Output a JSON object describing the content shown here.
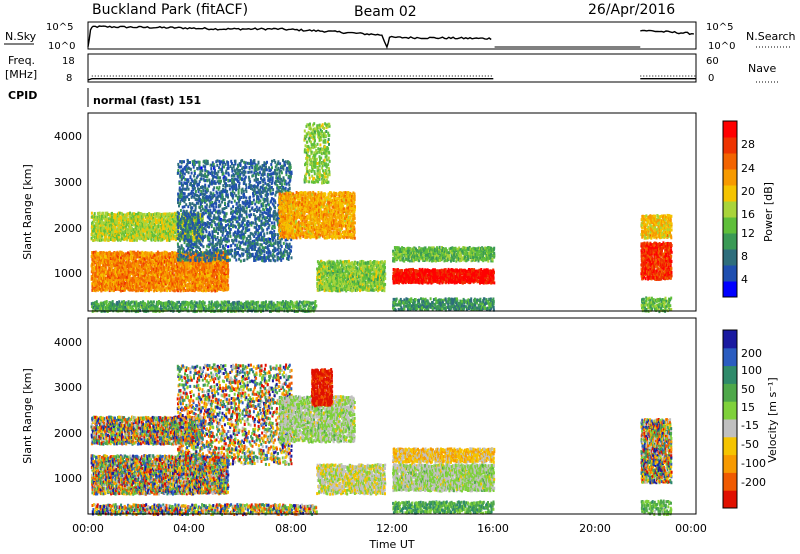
{
  "header": {
    "title": "Buckland Park (fitACF)",
    "beam": "Beam 02",
    "date": "26/Apr/2016"
  },
  "strip": {
    "nsky_label": "N.Sky",
    "nsky_ticks": [
      "10^5",
      "10^0"
    ],
    "nsearch_label": "N.Search",
    "freq_label_1": "Freq.",
    "freq_label_2": "[MHz]",
    "freq_ticks": [
      "18",
      "8"
    ],
    "nave_label": "Nave",
    "nave_ticks": [
      "60",
      "0"
    ],
    "cpid_label": "CPID",
    "cpid_value": "normal (fast) 151"
  },
  "axes": {
    "xlabel": "Time UT",
    "x_ticks": [
      "00:00",
      "04:00",
      "08:00",
      "12:00",
      "16:00",
      "20:00",
      "00:00"
    ],
    "ylabel": "Slant Range [km]",
    "y_ticks": [
      "4000",
      "3000",
      "2000",
      "1000"
    ]
  },
  "colorbars": {
    "power": {
      "label": "Power [dB]",
      "ticks": [
        "28",
        "24",
        "20",
        "16",
        "12",
        "8",
        "4"
      ],
      "colors": [
        "#0000ff",
        "#1f4fb0",
        "#2e6e7c",
        "#3a9a55",
        "#5fbf3a",
        "#a9d43a",
        "#f5c400",
        "#f79a00",
        "#f36400",
        "#ee3300",
        "#ff0000"
      ]
    },
    "velocity": {
      "label": "Velocity [m s⁻¹]",
      "ticks": [
        "200",
        "100",
        "50",
        "15",
        "-15",
        "-50",
        "-100",
        "-200"
      ],
      "colors": [
        "#1a1aa0",
        "#2a5cc0",
        "#2f8a6a",
        "#4ea84a",
        "#7fd13a",
        "#c0c0c0",
        "#f5c400",
        "#f79a00",
        "#f05a00",
        "#e01000"
      ]
    }
  },
  "chart_data": [
    {
      "type": "line",
      "panel": "N.Sky / N.Search",
      "x_hours": [
        0,
        0.1,
        0.2,
        3.5,
        5.2,
        7.5,
        9.5,
        11.6,
        11.8,
        11.9,
        16.0,
        21.8,
        24.0
      ],
      "y_normalized": [
        0.0,
        0.7,
        0.85,
        0.8,
        0.75,
        0.75,
        0.65,
        0.5,
        0.0,
        0.4,
        0.35,
        0.7,
        0.55
      ],
      "ylim": [
        0,
        1
      ],
      "gaps_hours": [
        [
          16.05,
          21.8
        ]
      ]
    },
    {
      "type": "line",
      "panel": "Freq. / Nave",
      "x_hours": [
        0,
        0.15,
        11.8,
        12.0,
        16.0,
        21.8,
        24.0
      ],
      "freq_mhz": [
        8,
        8.5,
        8.5,
        8.5,
        8.5,
        8.5,
        8.5
      ],
      "ylim": [
        8,
        18
      ],
      "gaps_hours": [
        [
          16.05,
          21.8
        ]
      ]
    },
    {
      "type": "heatmap",
      "panel": "Power",
      "x_range_hours": [
        0,
        24
      ],
      "y_range_km": [
        180,
        4500
      ],
      "colorbar": "Power [dB]",
      "scatter_regions": [
        {
          "t0": 0.1,
          "t1": 5.5,
          "r0": 650,
          "r1": 1500,
          "level": 0.72,
          "density": 0.9
        },
        {
          "t0": 0.1,
          "t1": 4.5,
          "r0": 1750,
          "r1": 2350,
          "level": 0.5,
          "density": 0.85
        },
        {
          "t0": 0.1,
          "t1": 9.0,
          "r0": 200,
          "r1": 420,
          "level": 0.35,
          "density": 0.7
        },
        {
          "t0": 3.5,
          "t1": 8.0,
          "r0": 1300,
          "r1": 3500,
          "level": 0.2,
          "density": 0.35
        },
        {
          "t0": 7.5,
          "t1": 10.5,
          "r0": 1800,
          "r1": 2800,
          "level": 0.65,
          "density": 0.8
        },
        {
          "t0": 8.5,
          "t1": 9.5,
          "r0": 3000,
          "r1": 4300,
          "level": 0.45,
          "density": 0.4
        },
        {
          "t0": 9.0,
          "t1": 11.7,
          "r0": 650,
          "r1": 1300,
          "level": 0.45,
          "density": 0.85
        },
        {
          "t0": 12.0,
          "t1": 16.0,
          "r0": 1300,
          "r1": 1600,
          "level": 0.4,
          "density": 0.8
        },
        {
          "t0": 12.0,
          "t1": 16.0,
          "r0": 820,
          "r1": 1120,
          "level": 0.95,
          "density": 0.95
        },
        {
          "t0": 12.0,
          "t1": 16.0,
          "r0": 230,
          "r1": 480,
          "level": 0.3,
          "density": 0.6
        },
        {
          "t0": 21.8,
          "t1": 23.0,
          "r0": 900,
          "r1": 1700,
          "level": 0.88,
          "density": 0.9
        },
        {
          "t0": 21.8,
          "t1": 23.0,
          "r0": 1800,
          "r1": 2300,
          "level": 0.62,
          "density": 0.85
        },
        {
          "t0": 21.8,
          "t1": 23.0,
          "r0": 200,
          "r1": 500,
          "level": 0.4,
          "density": 0.6
        }
      ]
    },
    {
      "type": "heatmap",
      "panel": "Velocity",
      "x_range_hours": [
        0,
        24
      ],
      "y_range_km": [
        180,
        4500
      ],
      "colorbar": "Velocity [m s⁻¹]",
      "scatter_regions": [
        {
          "t0": 0.1,
          "t1": 5.5,
          "r0": 650,
          "r1": 1500,
          "level": -1,
          "density": 0.85
        },
        {
          "t0": 0.1,
          "t1": 4.5,
          "r0": 1750,
          "r1": 2350,
          "level": -1,
          "density": 0.8
        },
        {
          "t0": 0.1,
          "t1": 9.0,
          "r0": 200,
          "r1": 420,
          "level": -1,
          "density": 0.6
        },
        {
          "t0": 3.5,
          "t1": 8.0,
          "r0": 1300,
          "r1": 3500,
          "level": -1,
          "density": 0.3
        },
        {
          "t0": 7.5,
          "t1": 10.5,
          "r0": 1800,
          "r1": 2800,
          "level": 0.5,
          "density": 0.7
        },
        {
          "t0": 8.8,
          "t1": 9.6,
          "r0": 2600,
          "r1": 3400,
          "level": 0.05,
          "density": 0.9
        },
        {
          "t0": 9.0,
          "t1": 11.7,
          "r0": 650,
          "r1": 1300,
          "level": 0.45,
          "density": 0.8
        },
        {
          "t0": 12.0,
          "t1": 16.0,
          "r0": 1350,
          "r1": 1650,
          "level": 0.35,
          "density": 0.85
        },
        {
          "t0": 12.0,
          "t1": 16.0,
          "r0": 720,
          "r1": 1300,
          "level": 0.5,
          "density": 0.95
        },
        {
          "t0": 12.0,
          "t1": 16.0,
          "r0": 230,
          "r1": 480,
          "level": 0.65,
          "density": 0.6
        },
        {
          "t0": 21.8,
          "t1": 23.0,
          "r0": 900,
          "r1": 2300,
          "level": -1,
          "density": 0.85
        },
        {
          "t0": 21.8,
          "t1": 23.0,
          "r0": 200,
          "r1": 500,
          "level": 0.6,
          "density": 0.5
        }
      ]
    }
  ]
}
